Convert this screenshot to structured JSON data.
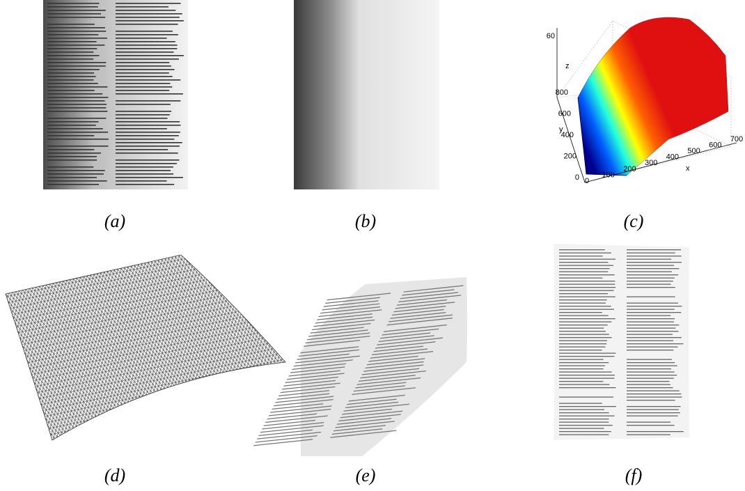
{
  "panels": [
    {
      "label": "(a)"
    },
    {
      "label": "(b)"
    },
    {
      "label": "(c)"
    },
    {
      "label": "(d)"
    },
    {
      "label": "(e)"
    },
    {
      "label": "(f)"
    }
  ],
  "plot": {
    "x_label": "x",
    "y_label": "y",
    "z_label": "z",
    "xticks": [
      0,
      100,
      200,
      300,
      400,
      500,
      600,
      700
    ],
    "yticks": [
      0,
      200,
      400,
      600,
      800
    ],
    "zticks": [
      60
    ]
  }
}
